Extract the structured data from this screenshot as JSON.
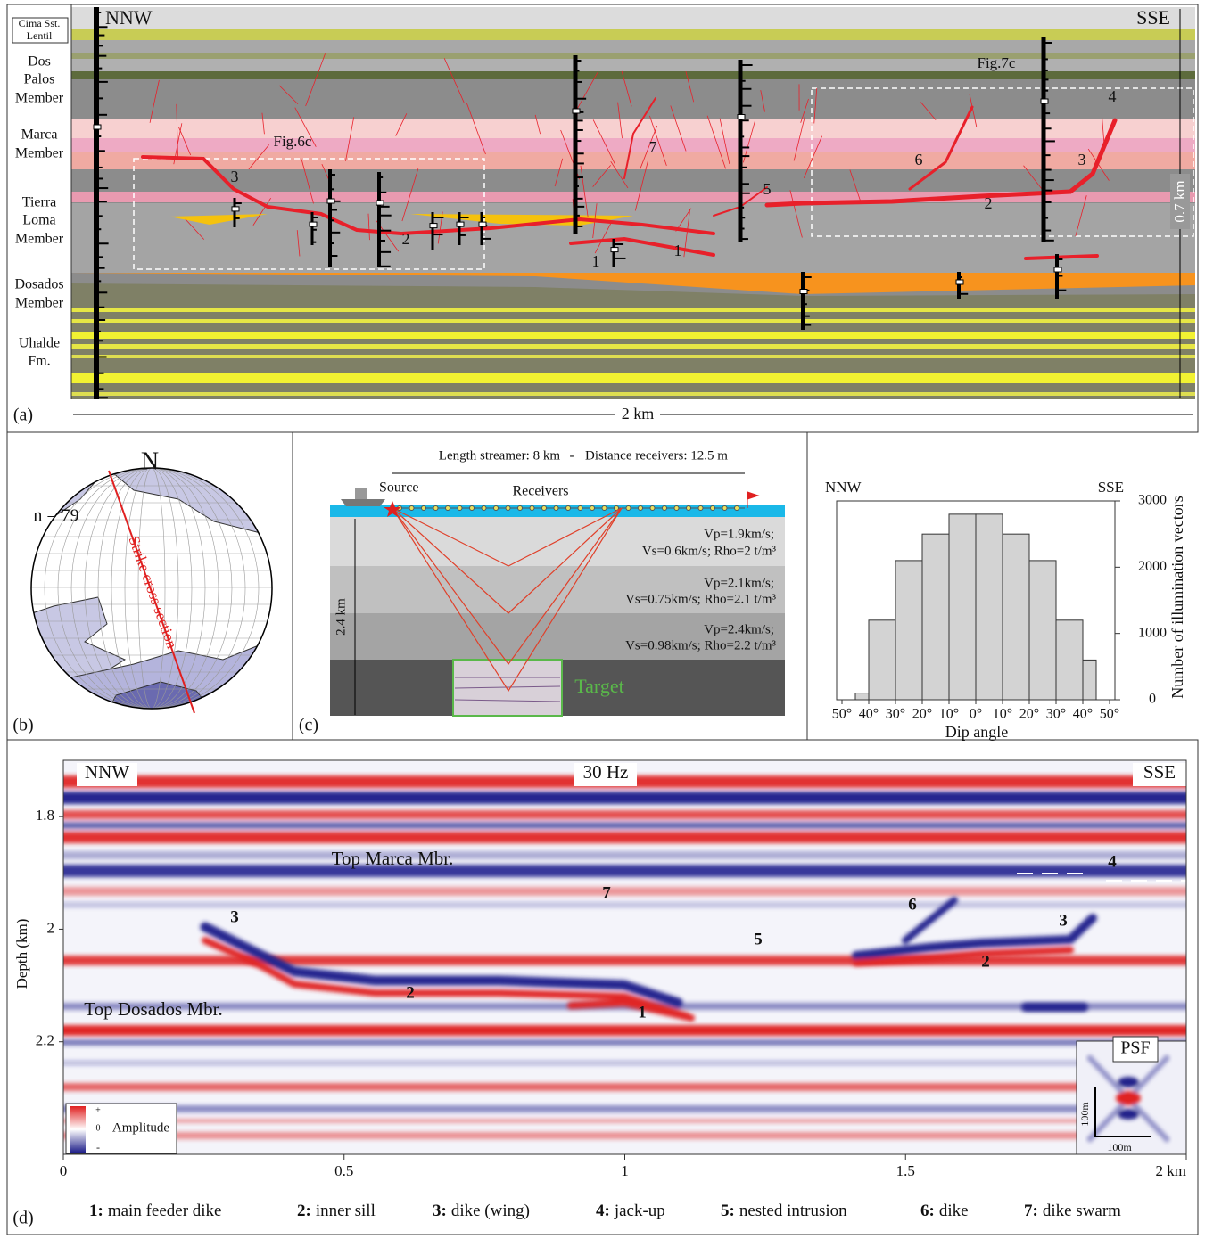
{
  "panel_a": {
    "label": "(a)",
    "left": "NNW",
    "right": "SSE",
    "units": [
      [
        "Cima Sst.",
        "Lentil"
      ],
      [
        "Dos",
        "Palos",
        "Member"
      ],
      [
        "Marca",
        "Member"
      ],
      [
        "Tierra",
        "Loma",
        "Member"
      ],
      [
        "Dosados",
        "Member"
      ],
      [
        "Uhalde",
        "Fm."
      ]
    ],
    "boxes": [
      "Fig.6c",
      "Fig.7c"
    ],
    "intrusion_labels": [
      "3",
      "7",
      "6",
      "5",
      "2",
      "2",
      "1",
      "1",
      "3",
      "4"
    ],
    "thickness": "0.7 km",
    "width": "2 km"
  },
  "panel_b": {
    "label": "(b)",
    "north": "N",
    "count": "n = 79",
    "line_label": "Strike cross section"
  },
  "panel_c": {
    "label": "(c)",
    "streamer": "Length streamer: 8 km",
    "separator": "-",
    "receiver_spacing": "Distance receivers: 12.5 m",
    "source": "Source",
    "receivers": "Receivers",
    "depth": "2.4 km",
    "layers": [
      [
        "Vp=1.9km/s;",
        "Vs=0.6km/s; Rho=2 t/m³"
      ],
      [
        "Vp=2.1km/s;",
        "Vs=0.75km/s; Rho=2.1 t/m³"
      ],
      [
        "Vp=2.4km/s;",
        "Vs=0.98km/s; Rho=2.2 t/m³"
      ]
    ],
    "target": "Target"
  },
  "chart_data": {
    "type": "histogram",
    "left": "NNW",
    "right": "SSE",
    "xlabel": "Dip angle",
    "ylabel": "Number of illumination vectors",
    "bins": [
      -45,
      -40,
      -30,
      -20,
      -10,
      0,
      10,
      20,
      30,
      40,
      45
    ],
    "counts": [
      100,
      1200,
      2100,
      2500,
      2800,
      2800,
      2500,
      2100,
      1200,
      600
    ],
    "color": "#d3d3d3",
    "xlim": [
      -52,
      52
    ],
    "ylim": [
      0,
      3000
    ],
    "xticks": [
      {
        "value": -50,
        "label": "50°"
      },
      {
        "value": -40,
        "label": "40°"
      },
      {
        "value": -30,
        "label": "30°"
      },
      {
        "value": -20,
        "label": "20°"
      },
      {
        "value": -10,
        "label": "10°"
      },
      {
        "value": 0,
        "label": "0°"
      },
      {
        "value": 10,
        "label": "10°"
      },
      {
        "value": 20,
        "label": "20°"
      },
      {
        "value": 30,
        "label": "30°"
      },
      {
        "value": 40,
        "label": "40°"
      },
      {
        "value": 50,
        "label": "50°"
      }
    ],
    "yticks": [
      0,
      1000,
      2000,
      3000
    ],
    "y_axis_side": "right"
  },
  "panel_d": {
    "label": "(d)",
    "left": "NNW",
    "right": "SSE",
    "title": "30 Hz",
    "ylabel": "Depth (km)",
    "ylim": [
      1.7,
      2.4
    ],
    "yticks": [
      1.8,
      2,
      2.2
    ],
    "xlim": [
      0,
      2
    ],
    "xticks": [
      0,
      0.5,
      1,
      1.5,
      {
        "value": 2,
        "label": "2 km"
      }
    ],
    "horizons": [
      "Top Marca Mbr.",
      "Top Dosados Mbr."
    ],
    "intrusion_labels": [
      "3",
      "7",
      "5",
      "6",
      "3",
      "4",
      "2",
      "2",
      "1"
    ],
    "colorbar": {
      "title": "Amplitude",
      "max": "+",
      "mid": "0",
      "min": "-"
    },
    "psf": {
      "title": "PSF",
      "height": "100m",
      "width": "100m"
    },
    "legend": [
      {
        "key": "1:",
        "text": "main feeder dike"
      },
      {
        "key": "2:",
        "text": "inner sill"
      },
      {
        "key": "3:",
        "text": "dike (wing)"
      },
      {
        "key": "4:",
        "text": "jack-up"
      },
      {
        "key": "5:",
        "text": "nested intrusion"
      },
      {
        "key": "6:",
        "text": "dike"
      },
      {
        "key": "7:",
        "text": "dike swarm"
      }
    ]
  }
}
